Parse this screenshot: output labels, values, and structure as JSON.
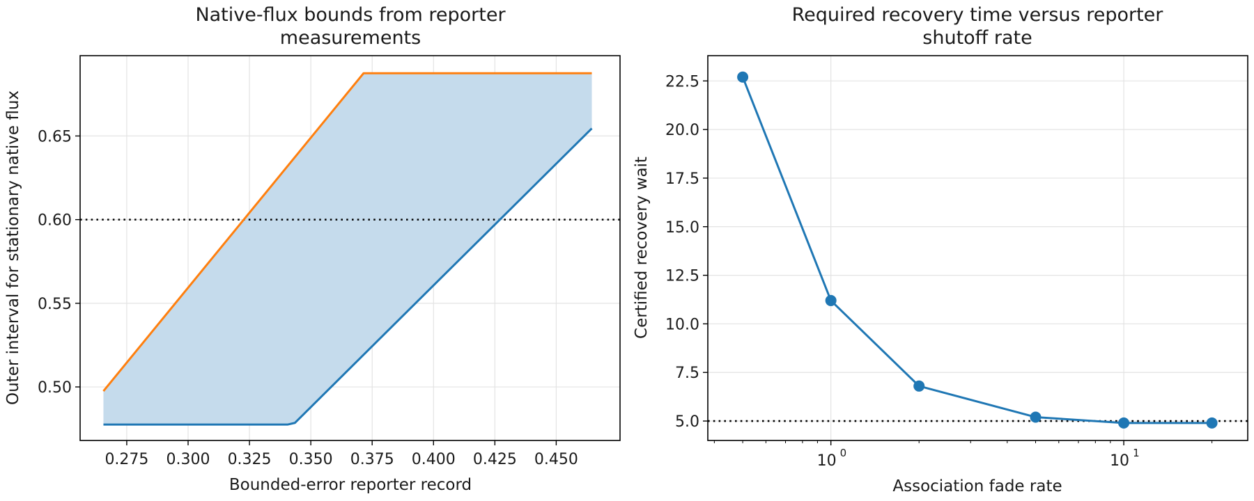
{
  "chart_data": [
    {
      "type": "line",
      "title_lines": [
        "Native-flux bounds from reporter",
        "measurements"
      ],
      "xlabel": "Bounded-error reporter record",
      "ylabel": "Outer interval for stationary native flux",
      "xlim": [
        0.256,
        0.476
      ],
      "ylim": [
        0.468,
        0.698
      ],
      "x_ticks": [
        0.275,
        0.3,
        0.325,
        0.35,
        0.375,
        0.4,
        0.425,
        0.45
      ],
      "x_tick_labels": [
        "0.275",
        "0.300",
        "0.325",
        "0.350",
        "0.375",
        "0.400",
        "0.425",
        "0.450"
      ],
      "y_ticks": [
        0.5,
        0.55,
        0.6,
        0.65
      ],
      "y_tick_labels": [
        "0.50",
        "0.55",
        "0.60",
        "0.65"
      ],
      "grid": true,
      "series": [
        {
          "role": "upper",
          "color": "#ff7f0e",
          "x": [
            0.2655,
            0.3715,
            0.4645
          ],
          "y": [
            0.4975,
            0.6875,
            0.6875
          ]
        },
        {
          "role": "lower",
          "color": "#1f77b4",
          "x": [
            0.2655,
            0.3405,
            0.3435,
            0.4645
          ],
          "y": [
            0.4775,
            0.4775,
            0.4785,
            0.6545
          ]
        }
      ],
      "fill_between": {
        "color": "#c5dbec"
      },
      "reference_line": {
        "axis": "y",
        "value": 0.6,
        "style": "dotted",
        "color": "#000000"
      }
    },
    {
      "type": "line",
      "title_lines": [
        "Required recovery time versus reporter",
        "shutoff rate"
      ],
      "xlabel": "Association fade rate",
      "ylabel": "Certified recovery wait",
      "xscale": "log",
      "xlim": [
        0.38,
        26.5
      ],
      "ylim": [
        4.0,
        23.8
      ],
      "x_ticks": [
        1,
        10
      ],
      "x_tick_labels": [
        {
          "base": "10",
          "exp": "0"
        },
        {
          "base": "10",
          "exp": "1"
        }
      ],
      "y_ticks": [
        5.0,
        7.5,
        10.0,
        12.5,
        15.0,
        17.5,
        20.0,
        22.5
      ],
      "y_tick_labels": [
        "5.0",
        "7.5",
        "10.0",
        "12.5",
        "15.0",
        "17.5",
        "20.0",
        "22.5"
      ],
      "grid": true,
      "series": [
        {
          "color": "#1f77b4",
          "marker": "circle",
          "x": [
            0.5,
            1,
            2,
            5,
            10,
            20
          ],
          "y": [
            22.7,
            11.2,
            6.8,
            5.2,
            4.9,
            4.9
          ]
        }
      ],
      "reference_line": {
        "axis": "y",
        "value": 5.0,
        "style": "dotted",
        "color": "#000000"
      }
    }
  ]
}
